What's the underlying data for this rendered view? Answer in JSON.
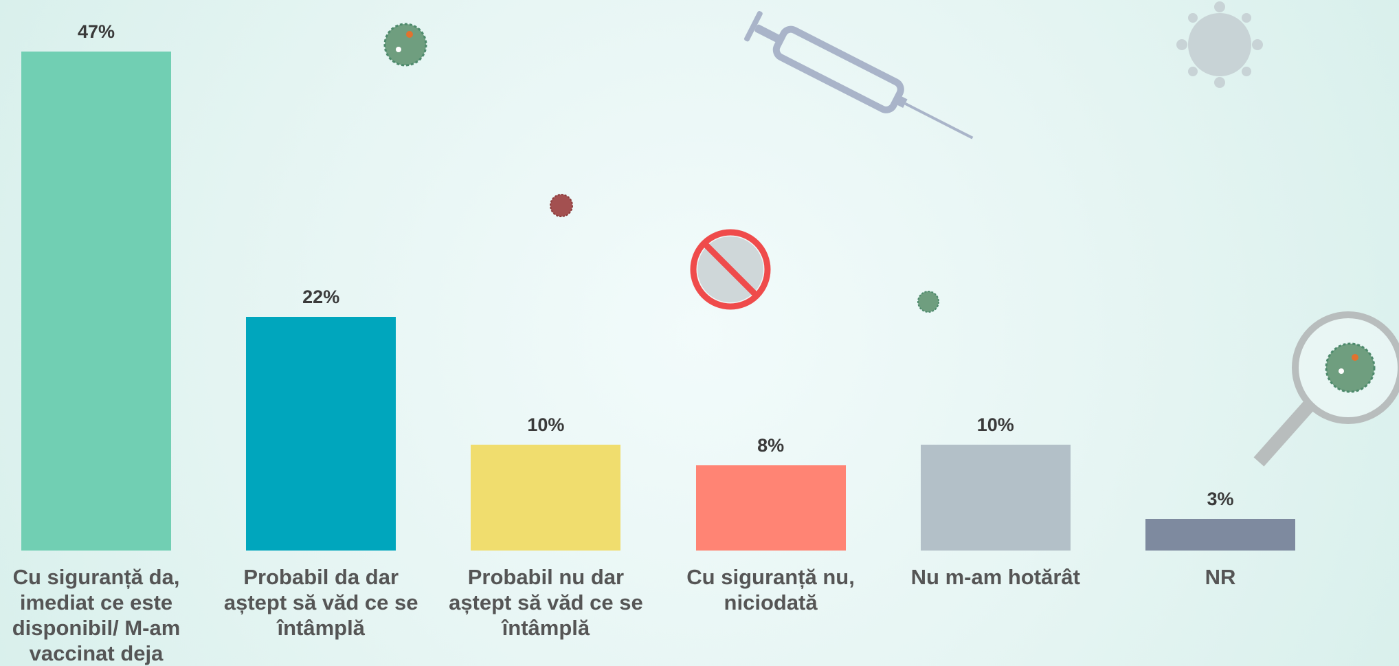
{
  "chart_data": {
    "type": "bar",
    "categories": [
      "Cu siguranță da, imediat ce este disponibil/ M-am vaccinat deja",
      "Probabil da dar aștept să văd ce se întâmplă",
      "Probabil nu dar aștept să văd ce se întâmplă",
      "Cu siguranță nu, niciodată",
      "Nu m-am hotărât",
      "NR"
    ],
    "values": [
      47,
      22,
      10,
      8,
      10,
      3
    ],
    "value_labels": [
      "47%",
      "22%",
      "10%",
      "8%",
      "10%",
      "3%"
    ],
    "colors": [
      "#71cfb3",
      "#00a6bd",
      "#f0dd6e",
      "#ff8474",
      "#b3c0c8",
      "#7e8a9f"
    ]
  }
}
